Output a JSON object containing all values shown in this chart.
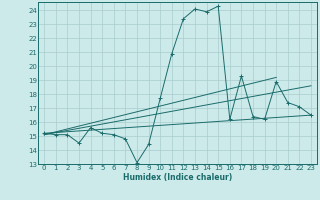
{
  "xlabel": "Humidex (Indice chaleur)",
  "bg_color": "#cdeaea",
  "grid_color": "#aacccc",
  "line_color": "#1a6b6b",
  "xlim": [
    -0.5,
    23.5
  ],
  "ylim": [
    13,
    24.6
  ],
  "yticks": [
    13,
    14,
    15,
    16,
    17,
    18,
    19,
    20,
    21,
    22,
    23,
    24
  ],
  "xticks": [
    0,
    1,
    2,
    3,
    4,
    5,
    6,
    7,
    8,
    9,
    10,
    11,
    12,
    13,
    14,
    15,
    16,
    17,
    18,
    19,
    20,
    21,
    22,
    23
  ],
  "line1_x": [
    0,
    1,
    2,
    3,
    4,
    5,
    6,
    7,
    8,
    9,
    10,
    11,
    12,
    13,
    14,
    15,
    16,
    17,
    18,
    19,
    20,
    21,
    22,
    23
  ],
  "line1_y": [
    15.2,
    15.1,
    15.1,
    14.5,
    15.6,
    15.2,
    15.1,
    14.8,
    13.1,
    14.4,
    17.7,
    20.9,
    23.4,
    24.1,
    23.9,
    24.3,
    16.2,
    19.3,
    16.4,
    16.2,
    18.9,
    17.4,
    17.1,
    16.5
  ],
  "line2_x": [
    0,
    23
  ],
  "line2_y": [
    15.2,
    16.5
  ],
  "line3_x": [
    0,
    20
  ],
  "line3_y": [
    15.1,
    19.2
  ],
  "line4_x": [
    0,
    23
  ],
  "line4_y": [
    15.1,
    18.6
  ]
}
